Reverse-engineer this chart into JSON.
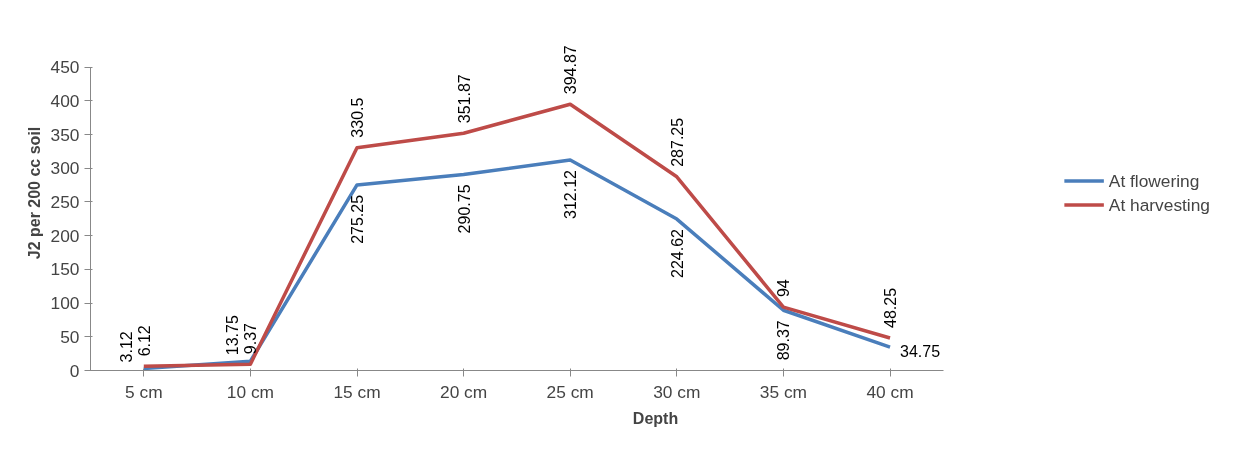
{
  "chart_data": {
    "type": "line",
    "xlabel": "Depth",
    "ylabel": "J2 per 200 cc soil",
    "categories": [
      "5 cm",
      "10 cm",
      "15 cm",
      "20 cm",
      "25 cm",
      "30 cm",
      "35 cm",
      "40 cm"
    ],
    "series": [
      {
        "name": "At flowering",
        "color": "#4a7ebb",
        "values": [
          3.12,
          13.75,
          275.25,
          290.75,
          312.12,
          224.62,
          89.37,
          34.75
        ]
      },
      {
        "name": "At harvesting",
        "color": "#be4b48",
        "values": [
          6.12,
          9.37,
          330.5,
          351.87,
          394.87,
          287.25,
          94,
          48.25
        ]
      }
    ],
    "ylim": [
      0,
      450
    ],
    "yticks": [
      0,
      50,
      100,
      150,
      200,
      250,
      300,
      350,
      400,
      450
    ],
    "data_labels": true,
    "legend": "right",
    "grid": false,
    "marker": "none",
    "line_style": "solid"
  }
}
